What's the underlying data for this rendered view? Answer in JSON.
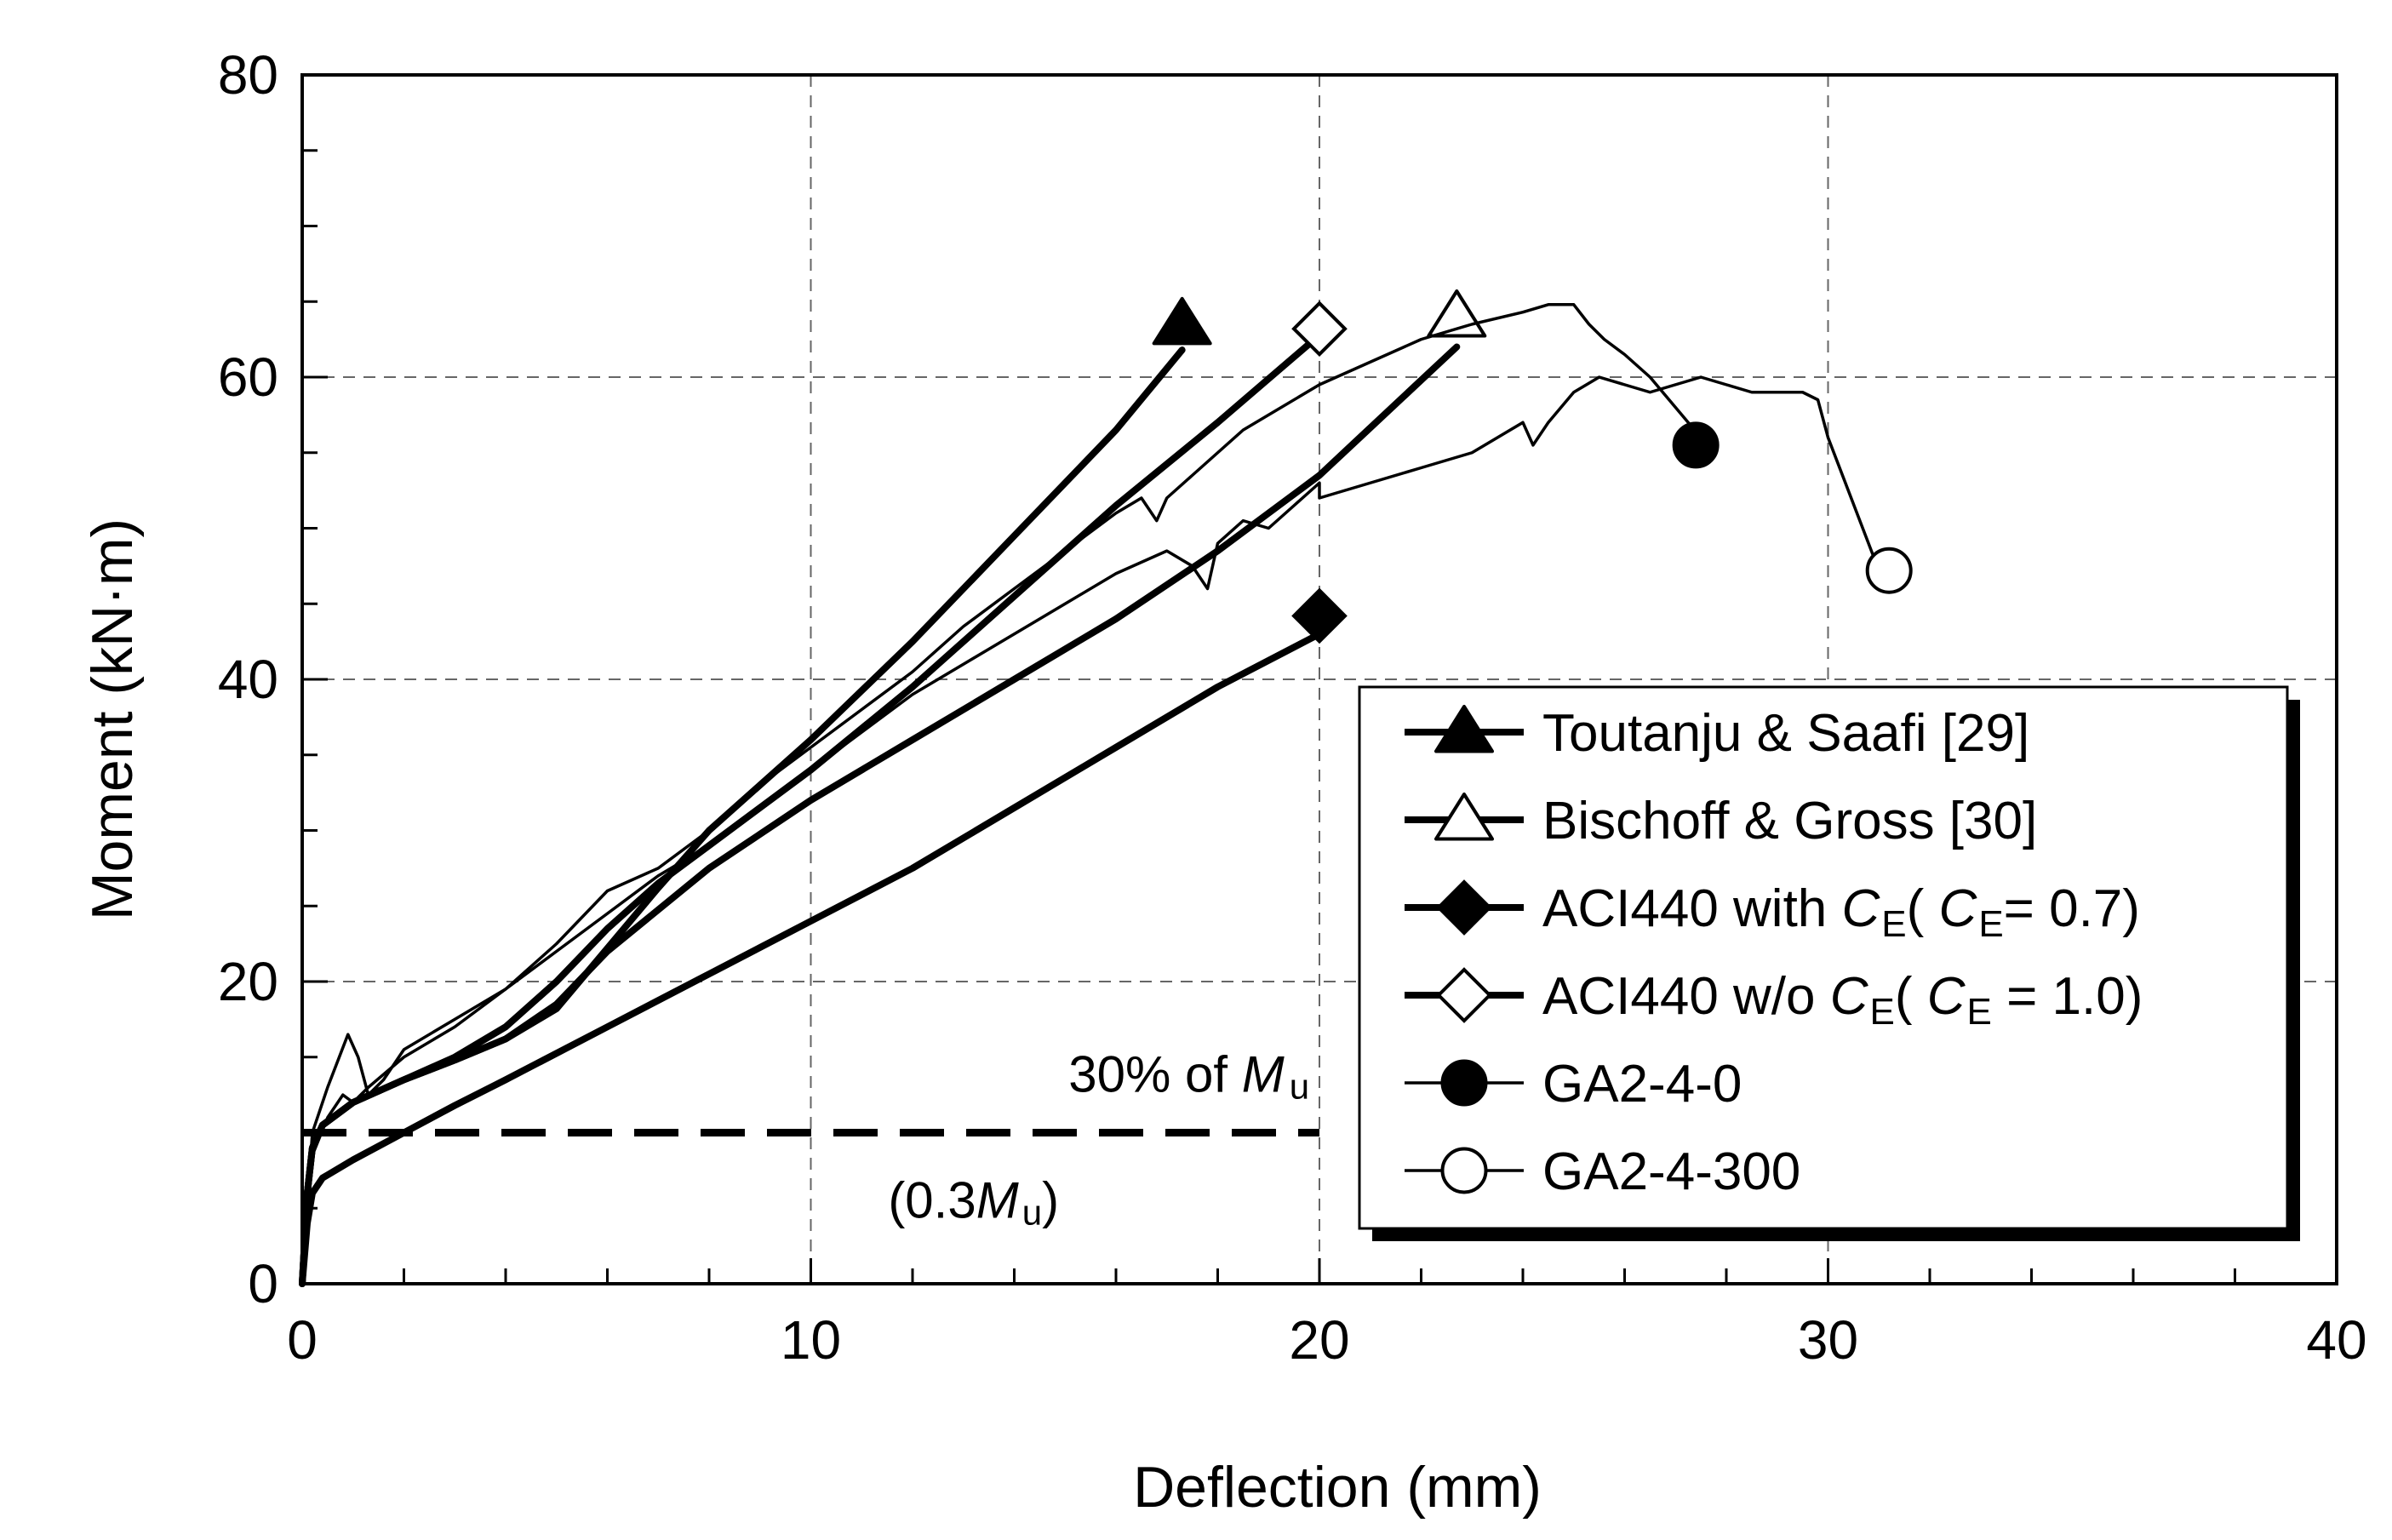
{
  "chart_data": {
    "type": "line",
    "title": "",
    "xlabel": "Deflection (mm)",
    "ylabel": "Moment (kN·m)",
    "xlim": [
      0,
      40
    ],
    "ylim": [
      0,
      80
    ],
    "xticks": [
      "0",
      "10",
      "20",
      "30",
      "40"
    ],
    "yticks": [
      "0",
      "20",
      "40",
      "60",
      "80"
    ],
    "grid": true,
    "legend_position": "right",
    "series": [
      {
        "name": "Toutanju & Saafi [29]",
        "legend_main": "Toutanju & Saafi [29]",
        "marker": "filled-triangle",
        "style": "thick",
        "x": [
          0,
          0.1,
          0.2,
          0.4,
          1.0,
          2.0,
          3.0,
          4.0,
          5.0,
          6.0,
          7.0,
          8.0,
          10.0,
          12.0,
          14.0,
          16.0,
          17.3
        ],
        "y": [
          0,
          6.0,
          9.0,
          10.5,
          12.0,
          13.5,
          14.8,
          16.2,
          18.2,
          22.2,
          26.2,
          30.0,
          36.0,
          42.5,
          49.5,
          56.5,
          61.8
        ],
        "end_x": 17.3,
        "end_y": 63.5
      },
      {
        "name": "Bischoff & Gross [30]",
        "legend_main": "Bischoff & Gross [30]",
        "marker": "open-triangle",
        "style": "thick",
        "x": [
          0,
          0.1,
          0.2,
          0.4,
          1.0,
          2.0,
          3.0,
          4.0,
          5.0,
          6.0,
          8.0,
          10.0,
          12.0,
          14.0,
          16.0,
          18.0,
          20.0,
          22.0,
          22.7
        ],
        "y": [
          0,
          6.0,
          9.0,
          10.5,
          12.0,
          13.5,
          14.8,
          16.2,
          18.5,
          22.0,
          27.5,
          32.0,
          36.0,
          40.0,
          44.0,
          48.5,
          53.5,
          59.8,
          62.0
        ],
        "end_x": 22.7,
        "end_y": 64.0
      },
      {
        "name": "ACI440 with CE (CE = 0.7)",
        "legend_main": "ACI440 with ",
        "legend_sym": "C",
        "legend_sub": "E",
        "legend_mid": "( ",
        "legend_sym2": "C",
        "legend_sub2": "E",
        "legend_tail": "= 0.7)",
        "marker": "filled-diamond",
        "style": "thick",
        "x": [
          0,
          0.1,
          0.2,
          0.4,
          1.0,
          2.0,
          3.0,
          4.0,
          6.0,
          8.0,
          10.0,
          12.0,
          14.0,
          16.0,
          18.0,
          20.0
        ],
        "y": [
          0,
          4.0,
          6.0,
          7.0,
          8.2,
          10.0,
          11.8,
          13.5,
          17.0,
          20.5,
          24.0,
          27.5,
          31.5,
          35.5,
          39.5,
          43.0
        ],
        "end_x": 20.0,
        "end_y": 44.2
      },
      {
        "name": "ACI440 w/o CE (CE = 1.0)",
        "legend_main": "ACI440 w/o ",
        "legend_sym": "C",
        "legend_sub": "E",
        "legend_mid": "( ",
        "legend_sym2": "C",
        "legend_sub2": "E",
        "legend_tail": " = 1.0)",
        "marker": "open-diamond",
        "style": "thick",
        "x": [
          0,
          0.1,
          0.2,
          0.4,
          1.0,
          2.0,
          3.0,
          4.0,
          5.0,
          6.0,
          7.0,
          8.0,
          10.0,
          12.0,
          14.0,
          16.0,
          18.0,
          19.8
        ],
        "y": [
          0,
          6.0,
          9.0,
          10.5,
          12.0,
          13.5,
          15.0,
          17.0,
          20.0,
          23.5,
          26.5,
          29.0,
          34.0,
          39.5,
          45.5,
          51.5,
          57.0,
          62.2
        ],
        "end_x": 20.0,
        "end_y": 63.2
      },
      {
        "name": "GA2-4-0",
        "legend_main": "GA2-4-0",
        "marker": "filled-circle",
        "style": "thin",
        "x": [
          0,
          0.2,
          0.5,
          0.8,
          1.0,
          1.3,
          2.0,
          3.0,
          4.0,
          5.0,
          6.0,
          7.0,
          8.0,
          9.0,
          10.0,
          11.0,
          12.0,
          13.0,
          14.0,
          15.0,
          16.0,
          16.5,
          16.8,
          17.0,
          17.5,
          18.0,
          18.5,
          19.0,
          20.0,
          21.0,
          22.0,
          23.0,
          24.0,
          24.5,
          25.0,
          25.3,
          25.6,
          26.0,
          26.5,
          27.0,
          27.5,
          27.8
        ],
        "y": [
          0,
          8.5,
          11.0,
          12.5,
          12.0,
          13.0,
          15.0,
          17.0,
          19.5,
          22.5,
          26.0,
          27.5,
          30.0,
          33.0,
          35.5,
          38.0,
          40.5,
          43.5,
          46.0,
          48.5,
          51.0,
          52.0,
          50.5,
          52.0,
          53.5,
          55.0,
          56.5,
          57.5,
          59.5,
          61.0,
          62.5,
          63.5,
          64.3,
          64.8,
          64.8,
          63.5,
          62.5,
          61.5,
          60.0,
          58.0,
          56.0,
          55.5
        ],
        "end_x": 27.4,
        "end_y": 55.5
      },
      {
        "name": "GA2-4-300",
        "legend_main": "GA2-4-300",
        "marker": "open-circle",
        "style": "thin",
        "x": [
          0,
          0.2,
          0.5,
          0.9,
          1.1,
          1.3,
          1.6,
          2.0,
          3.0,
          4.0,
          5.0,
          6.0,
          7.0,
          8.0,
          9.0,
          10.0,
          11.0,
          12.0,
          13.0,
          14.0,
          15.0,
          16.0,
          17.0,
          17.5,
          17.8,
          18.0,
          18.5,
          19.0,
          19.5,
          20.0,
          20.0,
          21.0,
          22.0,
          23.0,
          24.0,
          24.2,
          24.5,
          25.0,
          25.5,
          26.0,
          26.5,
          27.0,
          27.5,
          28.0,
          28.5,
          29.0,
          29.5,
          29.8,
          30.0,
          31.0
        ],
        "y": [
          0,
          10.0,
          13.0,
          16.5,
          15.0,
          12.5,
          13.5,
          15.5,
          17.5,
          19.5,
          22.0,
          24.5,
          27.0,
          29.0,
          31.5,
          34.0,
          36.5,
          39.0,
          41.0,
          43.0,
          45.0,
          47.0,
          48.5,
          47.5,
          46.0,
          49.0,
          50.5,
          50.0,
          51.5,
          53.0,
          52.0,
          53.0,
          54.0,
          55.0,
          57.0,
          55.5,
          57.0,
          59.0,
          60.0,
          59.5,
          59.0,
          59.5,
          60.0,
          59.5,
          59.0,
          59.0,
          59.0,
          58.5,
          56.0,
          47.2
        ],
        "end_x": 31.2,
        "end_y": 47.2
      }
    ],
    "annotations": {
      "threshold_y": 10.0,
      "threshold_x_end": 20.0,
      "label_top_main": "30% of ",
      "label_top_sym": "M",
      "label_top_sub": "u",
      "label_bottom_open": "(0.3",
      "label_bottom_sym": "M",
      "label_bottom_sub": "u",
      "label_bottom_close": ")"
    }
  }
}
